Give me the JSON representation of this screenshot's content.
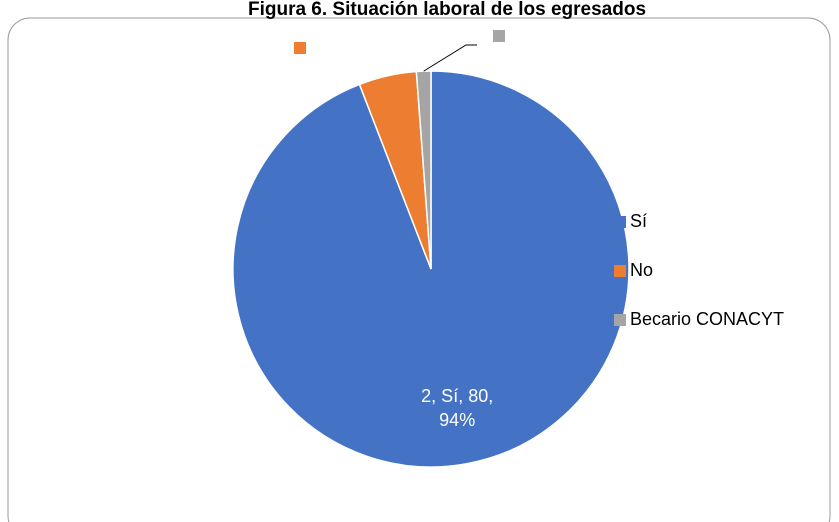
{
  "chart_data": {
    "type": "pie",
    "title": "Figura 6. Situación laboral de los egresados",
    "categories": [
      "Sí",
      "No",
      "Becario CONACYT"
    ],
    "values": [
      80,
      4,
      1
    ],
    "value_labels": [
      "2, Sí, 80, 94%",
      null,
      null
    ],
    "colors": [
      "#4472c4",
      "#ed7d31",
      "#a5a5a5"
    ],
    "legend": "right"
  }
}
